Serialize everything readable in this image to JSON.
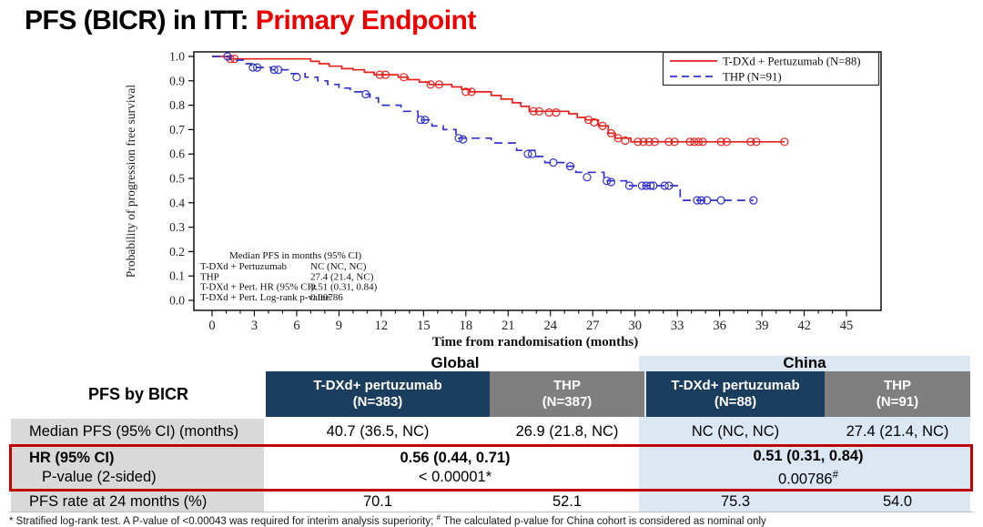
{
  "title": {
    "black": "PFS (BICR) in ITT: ",
    "red": "Primary Endpoint"
  },
  "colors": {
    "tdxd_line": "#e8231f",
    "thp_line": "#3333cc",
    "navy_header": "#1c3e5e",
    "gray_header": "#7f7f7f",
    "label_gray": "#d9d9d9",
    "china_band": "#dbe8f4",
    "highlight_border": "#c00000",
    "title_red": "#ee0000"
  },
  "chart_data": {
    "type": "line",
    "subtype": "kaplan-meier",
    "xlabel": "Time from randomisation (months)",
    "ylabel": "Probability of progression free survival",
    "xlim": [
      0,
      45
    ],
    "xtick_step": 3,
    "xminor_step": 1,
    "ylim": [
      0,
      1
    ],
    "ytick_step": 0.1,
    "grid": false,
    "legend_position": "top-right",
    "series": [
      {
        "name": "T-DXd + Pertuzumab (N=88)",
        "color": "#e8231f",
        "style": "solid",
        "steps": [
          [
            0,
            1.0
          ],
          [
            1.2,
            0.99
          ],
          [
            7.0,
            0.98
          ],
          [
            7.6,
            0.97
          ],
          [
            8.3,
            0.96
          ],
          [
            9.2,
            0.95
          ],
          [
            10.0,
            0.945
          ],
          [
            10.8,
            0.935
          ],
          [
            11.5,
            0.925
          ],
          [
            13.2,
            0.915
          ],
          [
            13.9,
            0.905
          ],
          [
            14.7,
            0.895
          ],
          [
            15.4,
            0.885
          ],
          [
            17.0,
            0.875
          ],
          [
            17.7,
            0.865
          ],
          [
            18.3,
            0.855
          ],
          [
            19.8,
            0.84
          ],
          [
            20.5,
            0.825
          ],
          [
            21.3,
            0.81
          ],
          [
            21.9,
            0.795
          ],
          [
            22.5,
            0.775
          ],
          [
            25.3,
            0.765
          ],
          [
            25.9,
            0.75
          ],
          [
            26.5,
            0.74
          ],
          [
            27.4,
            0.715
          ],
          [
            28.1,
            0.685
          ],
          [
            28.6,
            0.665
          ],
          [
            29.7,
            0.65
          ],
          [
            40.6,
            0.65
          ]
        ],
        "censors": [
          [
            1.3,
            0.99
          ],
          [
            1.6,
            0.99
          ],
          [
            11.9,
            0.925
          ],
          [
            12.3,
            0.925
          ],
          [
            13.6,
            0.915
          ],
          [
            15.5,
            0.885
          ],
          [
            16.1,
            0.885
          ],
          [
            18.0,
            0.855
          ],
          [
            18.4,
            0.855
          ],
          [
            22.8,
            0.775
          ],
          [
            23.2,
            0.775
          ],
          [
            23.9,
            0.77
          ],
          [
            24.4,
            0.77
          ],
          [
            26.7,
            0.74
          ],
          [
            27.1,
            0.73
          ],
          [
            27.7,
            0.715
          ],
          [
            28.3,
            0.685
          ],
          [
            28.8,
            0.665
          ],
          [
            29.3,
            0.655
          ],
          [
            30.2,
            0.65
          ],
          [
            30.6,
            0.65
          ],
          [
            31.0,
            0.65
          ],
          [
            31.4,
            0.65
          ],
          [
            32.4,
            0.65
          ],
          [
            32.8,
            0.65
          ],
          [
            33.9,
            0.65
          ],
          [
            34.2,
            0.65
          ],
          [
            34.5,
            0.65
          ],
          [
            34.8,
            0.65
          ],
          [
            36.1,
            0.65
          ],
          [
            36.5,
            0.65
          ],
          [
            38.2,
            0.65
          ],
          [
            38.6,
            0.65
          ],
          [
            40.6,
            0.65
          ]
        ]
      },
      {
        "name": "THP (N=91)",
        "color": "#3333cc",
        "style": "dashed",
        "steps": [
          [
            0,
            1.0
          ],
          [
            1.3,
            0.985
          ],
          [
            2.4,
            0.97
          ],
          [
            2.8,
            0.955
          ],
          [
            4.2,
            0.945
          ],
          [
            5.4,
            0.93
          ],
          [
            6.6,
            0.915
          ],
          [
            7.5,
            0.9
          ],
          [
            8.2,
            0.885
          ],
          [
            9.0,
            0.87
          ],
          [
            9.8,
            0.855
          ],
          [
            10.7,
            0.845
          ],
          [
            11.2,
            0.83
          ],
          [
            11.8,
            0.8
          ],
          [
            13.4,
            0.775
          ],
          [
            14.6,
            0.74
          ],
          [
            15.6,
            0.715
          ],
          [
            16.4,
            0.7
          ],
          [
            17.3,
            0.665
          ],
          [
            19.8,
            0.645
          ],
          [
            21.6,
            0.615
          ],
          [
            22.9,
            0.59
          ],
          [
            23.6,
            0.565
          ],
          [
            25.2,
            0.55
          ],
          [
            25.8,
            0.525
          ],
          [
            27.8,
            0.49
          ],
          [
            29.4,
            0.47
          ],
          [
            33.2,
            0.41
          ],
          [
            38.4,
            0.41
          ]
        ],
        "censors": [
          [
            1.1,
            1.0
          ],
          [
            2.9,
            0.955
          ],
          [
            3.2,
            0.955
          ],
          [
            4.4,
            0.945
          ],
          [
            4.7,
            0.945
          ],
          [
            6.0,
            0.915
          ],
          [
            10.9,
            0.845
          ],
          [
            14.8,
            0.74
          ],
          [
            15.1,
            0.74
          ],
          [
            17.5,
            0.665
          ],
          [
            17.8,
            0.66
          ],
          [
            22.4,
            0.6
          ],
          [
            22.7,
            0.6
          ],
          [
            24.2,
            0.565
          ],
          [
            25.4,
            0.55
          ],
          [
            26.6,
            0.505
          ],
          [
            28.0,
            0.49
          ],
          [
            28.3,
            0.485
          ],
          [
            29.6,
            0.47
          ],
          [
            30.5,
            0.47
          ],
          [
            30.8,
            0.47
          ],
          [
            31.1,
            0.47
          ],
          [
            31.3,
            0.47
          ],
          [
            32.1,
            0.47
          ],
          [
            32.4,
            0.47
          ],
          [
            34.4,
            0.41
          ],
          [
            34.7,
            0.41
          ],
          [
            35.1,
            0.41
          ],
          [
            36.1,
            0.41
          ],
          [
            38.4,
            0.41
          ]
        ]
      }
    ],
    "annotation": {
      "header": "Median PFS in months (95% CI)",
      "rows": [
        [
          "T-DXd + Pertuzumab",
          "NC  (NC, NC)"
        ],
        [
          "THP",
          "27.4 (21.4, NC)"
        ],
        [
          "T-DXd + Pert. HR (95% CI):",
          "0.51 (0.31, 0.84)"
        ],
        [
          "T-DXd + Pert. Log-rank p-value:",
          "0.00786"
        ]
      ]
    }
  },
  "table": {
    "corner_label": "PFS by BICR",
    "groups": {
      "global": "Global",
      "china": "China"
    },
    "columns": [
      {
        "label": "T-DXd+ pertuzumab",
        "n": "(N=383)"
      },
      {
        "label": "THP",
        "n": "(N=387)"
      },
      {
        "label": "T-DXd+ pertuzumab",
        "n": "(N=88)"
      },
      {
        "label": "THP",
        "n": "(N=91)"
      }
    ],
    "rows": {
      "median": {
        "label": "Median PFS (95% CI) (months)",
        "values": [
          "40.7 (36.5, NC)",
          "26.9 (21.8, NC)",
          "NC (NC, NC)",
          "27.4 (21.4, NC)"
        ]
      },
      "hr": {
        "label_line1": "HR (95% CI)",
        "label_line2": "P-value (2-sided)",
        "global_hr": "0.56 (0.44, 0.71)",
        "global_p": "< 0.00001*",
        "china_hr": "0.51 (0.31, 0.84)",
        "china_p": "0.00786",
        "china_p_sup": "#"
      },
      "rate24": {
        "label": "PFS rate at 24 months (%)",
        "values": [
          "70.1",
          "52.1",
          "75.3",
          "54.0"
        ]
      }
    }
  },
  "footnote": {
    "part1": "* Stratified log-rank test. A P-value of <0.00043 was required for interim analysis superiority; ",
    "sup": "#",
    "part2": " The calculated p-value for China cohort is considered as nominal only"
  }
}
